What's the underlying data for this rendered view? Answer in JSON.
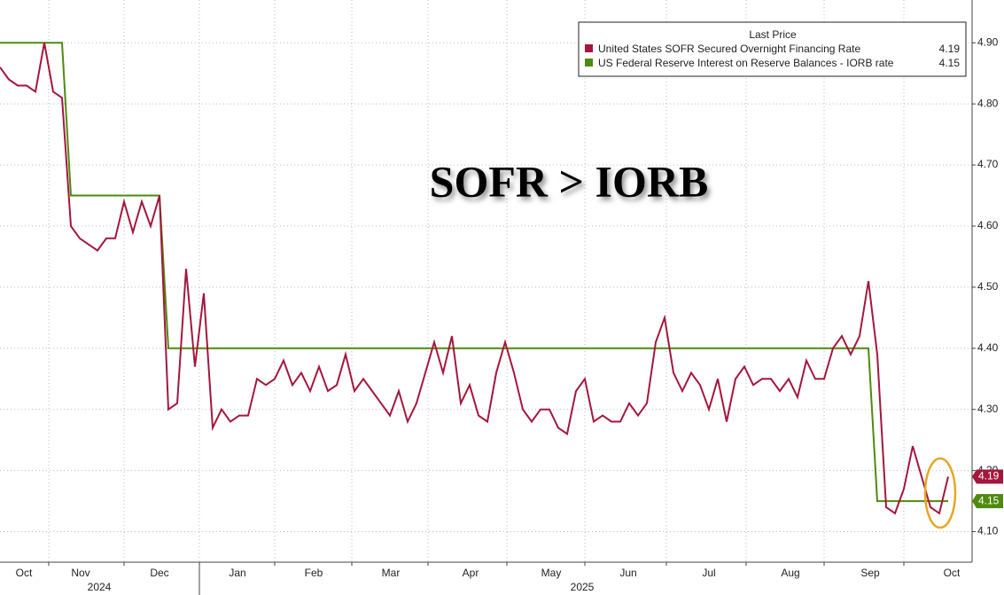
{
  "chart_data": {
    "type": "line",
    "annotation": "SOFR > IORB",
    "legend_title": "Last Price",
    "legend": "top-right",
    "grid": true,
    "xlim": [
      0,
      107
    ],
    "xticks": [
      {
        "value": 2.7,
        "label": "Oct"
      },
      {
        "value": 9.1,
        "label": "Nov"
      },
      {
        "value": 18,
        "label": "Dec"
      },
      {
        "value": 26.8,
        "label": "Jan"
      },
      {
        "value": 35.4,
        "label": "Feb"
      },
      {
        "value": 44.1,
        "label": "Mar"
      },
      {
        "value": 53.1,
        "label": "Apr"
      },
      {
        "value": 62.2,
        "label": "May"
      },
      {
        "value": 70.9,
        "label": "Jun"
      },
      {
        "value": 80,
        "label": "Jul"
      },
      {
        "value": 89.2,
        "label": "Aug"
      },
      {
        "value": 98.2,
        "label": "Sep"
      },
      {
        "value": 107.4,
        "label": "Oct"
      }
    ],
    "xgrid": [
      5.5,
      14,
      22.5,
      31,
      39.7,
      48.3,
      57.2,
      66,
      75.2,
      84.2,
      93,
      102
    ],
    "year_labels": [
      {
        "value": 11.2,
        "label": "2024"
      },
      {
        "value": 65.7,
        "label": "2025"
      }
    ],
    "year_divider": 22.5,
    "ylim": [
      4.05,
      4.97
    ],
    "yticks": [
      {
        "value": 4.1,
        "label": "4.10"
      },
      {
        "value": 4.2,
        "label": "4.20"
      },
      {
        "value": 4.3,
        "label": "4.30"
      },
      {
        "value": 4.4,
        "label": "4.40"
      },
      {
        "value": 4.5,
        "label": "4.50"
      },
      {
        "value": 4.6,
        "label": "4.60"
      },
      {
        "value": 4.7,
        "label": "4.70"
      },
      {
        "value": 4.8,
        "label": "4.80"
      },
      {
        "value": 4.9,
        "label": "4.90"
      }
    ],
    "series": [
      {
        "name": "United States SOFR Secured Overnight Financing Rate",
        "color": "#a3173c",
        "values": [
          4.86,
          4.84,
          4.83,
          4.83,
          4.82,
          4.9,
          4.82,
          4.81,
          4.6,
          4.58,
          4.57,
          4.56,
          4.58,
          4.58,
          4.64,
          4.59,
          4.64,
          4.6,
          4.65,
          4.3,
          4.31,
          4.53,
          4.37,
          4.49,
          4.27,
          4.3,
          4.28,
          4.29,
          4.29,
          4.35,
          4.34,
          4.35,
          4.38,
          4.34,
          4.36,
          4.33,
          4.37,
          4.33,
          4.34,
          4.39,
          4.33,
          4.35,
          4.33,
          4.31,
          4.29,
          4.33,
          4.28,
          4.31,
          4.36,
          4.41,
          4.36,
          4.42,
          4.31,
          4.34,
          4.29,
          4.28,
          4.36,
          4.41,
          4.36,
          4.3,
          4.28,
          4.3,
          4.3,
          4.27,
          4.26,
          4.33,
          4.35,
          4.28,
          4.29,
          4.28,
          4.28,
          4.31,
          4.29,
          4.31,
          4.41,
          4.45,
          4.36,
          4.33,
          4.36,
          4.34,
          4.3,
          4.35,
          4.28,
          4.35,
          4.37,
          4.34,
          4.35,
          4.35,
          4.33,
          4.35,
          4.32,
          4.38,
          4.35,
          4.35,
          4.4,
          4.42,
          4.39,
          4.42,
          4.51,
          4.39,
          4.14,
          4.13,
          4.17,
          4.24,
          4.19,
          4.14,
          4.13,
          4.19
        ]
      },
      {
        "name": "US Federal Reserve Interest on Reserve Balances - IORB rate",
        "color": "#4e8a0e",
        "values": [
          4.9,
          4.9,
          4.9,
          4.9,
          4.9,
          4.9,
          4.9,
          4.9,
          4.65,
          4.65,
          4.65,
          4.65,
          4.65,
          4.65,
          4.65,
          4.65,
          4.65,
          4.65,
          4.65,
          4.4,
          4.4,
          4.4,
          4.4,
          4.4,
          4.4,
          4.4,
          4.4,
          4.4,
          4.4,
          4.4,
          4.4,
          4.4,
          4.4,
          4.4,
          4.4,
          4.4,
          4.4,
          4.4,
          4.4,
          4.4,
          4.4,
          4.4,
          4.4,
          4.4,
          4.4,
          4.4,
          4.4,
          4.4,
          4.4,
          4.4,
          4.4,
          4.4,
          4.4,
          4.4,
          4.4,
          4.4,
          4.4,
          4.4,
          4.4,
          4.4,
          4.4,
          4.4,
          4.4,
          4.4,
          4.4,
          4.4,
          4.4,
          4.4,
          4.4,
          4.4,
          4.4,
          4.4,
          4.4,
          4.4,
          4.4,
          4.4,
          4.4,
          4.4,
          4.4,
          4.4,
          4.4,
          4.4,
          4.4,
          4.4,
          4.4,
          4.4,
          4.4,
          4.4,
          4.4,
          4.4,
          4.4,
          4.4,
          4.4,
          4.4,
          4.4,
          4.4,
          4.4,
          4.4,
          4.4,
          4.15,
          4.15,
          4.15,
          4.15,
          4.15,
          4.15,
          4.15,
          4.15,
          4.15
        ]
      }
    ]
  }
}
